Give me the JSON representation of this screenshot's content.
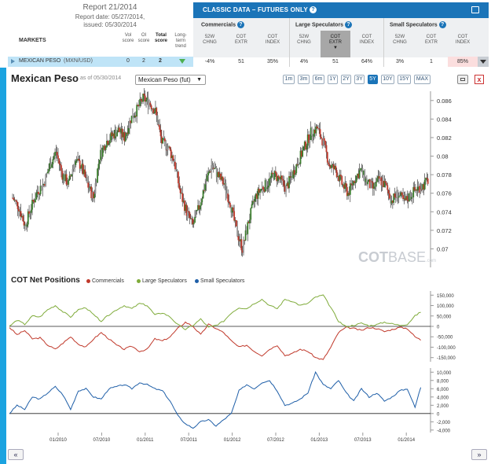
{
  "report": {
    "title": "Report 21/2014",
    "date": "Report date: 05/27/2014,",
    "issued": "issued: 05/30/2014"
  },
  "markets_label": "MARKETS",
  "score_headers": {
    "vol": [
      "Vol",
      "score"
    ],
    "oi": [
      "OI",
      "score"
    ],
    "total": [
      "Total",
      "score"
    ],
    "trend": [
      "Long-",
      "term",
      "trend"
    ]
  },
  "classic": {
    "title": "CLASSIC DATA – FUTURES ONLY",
    "help": "?"
  },
  "groups": [
    {
      "title": "Commercials",
      "cols": [
        [
          "52W",
          "CHNG"
        ],
        [
          "COT",
          "EXTR"
        ],
        [
          "COT",
          "INDEX"
        ]
      ],
      "values": [
        "-4%",
        "51",
        "35%"
      ]
    },
    {
      "title": "Large Speculators",
      "cols": [
        [
          "52W",
          "CHNG"
        ],
        [
          "COT",
          "EXTR"
        ],
        [
          "COT",
          "INDEX"
        ]
      ],
      "values": [
        "4%",
        "51",
        "64%"
      ]
    },
    {
      "title": "Small Speculators",
      "cols": [
        [
          "52W",
          "CHNG"
        ],
        [
          "COT",
          "EXTR"
        ],
        [
          "COT",
          "INDEX"
        ]
      ],
      "values": [
        "3%",
        "1",
        "85%"
      ]
    }
  ],
  "market_row": {
    "name": "MEXICAN PESO",
    "pair": "(MXN/USD)",
    "vol": "0",
    "oi": "2",
    "total": "2"
  },
  "chart_header": {
    "title": "Mexican Peso",
    "asof": "as of 05/30/2014",
    "select": "Mexican Peso (fut)"
  },
  "periods": [
    "1m",
    "3m",
    "6m",
    "1Y",
    "2Y",
    "3Y",
    "5Y",
    "10Y",
    "15Y",
    "MAX"
  ],
  "active_period": "5Y",
  "close": "x",
  "watermark": {
    "bold": "COT",
    "light": "BASE",
    "suffix": ".com"
  },
  "cot_title": "COT Net Positions",
  "legend": [
    {
      "label": "Commercials",
      "color": "#c0392b"
    },
    {
      "label": "Large Speculators",
      "color": "#7fab3a"
    },
    {
      "label": "Small Speculators",
      "color": "#1f5fa8"
    }
  ],
  "nav": {
    "prev": "«",
    "next": "»"
  },
  "chart_data": [
    {
      "type": "candlestick",
      "yticks": [
        "0.086",
        "0.084",
        "0.082",
        "0.08",
        "0.078",
        "0.076",
        "0.074",
        "0.072",
        "0.07"
      ],
      "ylim": [
        0.068,
        0.087
      ],
      "series": [
        {
          "values": [
            0.0755,
            0.0745,
            0.0725,
            0.0745,
            0.0762,
            0.077,
            0.079,
            0.0805,
            0.078,
            0.077,
            0.0795,
            0.079,
            0.077,
            0.0755,
            0.08,
            0.0815,
            0.0822,
            0.0828,
            0.082,
            0.084,
            0.085,
            0.0862,
            0.0858,
            0.0848,
            0.0815,
            0.081,
            0.0795,
            0.076,
            0.074,
            0.0725,
            0.0745,
            0.077,
            0.079,
            0.078,
            0.077,
            0.075,
            0.072,
            0.07,
            0.073,
            0.0755,
            0.0765,
            0.077,
            0.078,
            0.0775,
            0.0765,
            0.078,
            0.0795,
            0.081,
            0.0825,
            0.083,
            0.0815,
            0.079,
            0.0785,
            0.077,
            0.076,
            0.0775,
            0.0785,
            0.0772,
            0.0765,
            0.0775,
            0.0768,
            0.0752,
            0.076,
            0.075,
            0.0758,
            0.0765,
            0.0768,
            0.0775
          ]
        }
      ]
    },
    {
      "type": "line",
      "yticks": [
        "150,000",
        "100,000",
        "50,000",
        "0",
        "-50,000",
        "-100,000",
        "-150,000"
      ],
      "ylim": [
        -170000,
        170000
      ],
      "series": [
        {
          "name": "Commercials",
          "values": [
            -5000,
            -40000,
            -20000,
            -60000,
            -55000,
            -90000,
            -110000,
            -80000,
            -50000,
            -85000,
            -100000,
            -60000,
            -30000,
            -60000,
            -90000,
            -110000,
            -95000,
            -120000,
            -110000,
            -60000,
            -70000,
            -50000,
            -10000,
            20000,
            0,
            -40000,
            10000,
            -10000,
            -30000,
            -70000,
            -100000,
            -90000,
            -120000,
            -140000,
            -110000,
            -90000,
            -140000,
            -130000,
            -110000,
            -120000,
            -150000,
            -160000,
            -100000,
            -30000,
            -5000,
            -10000,
            -20000,
            -5000,
            -10000,
            -25000,
            -15000,
            -5000,
            -10000,
            -50000,
            -70000
          ]
        },
        {
          "name": "Large Speculators",
          "values": [
            0,
            30000,
            10000,
            50000,
            45000,
            80000,
            100000,
            70000,
            45000,
            80000,
            90000,
            55000,
            25000,
            55000,
            80000,
            100000,
            85000,
            110000,
            100000,
            55000,
            65000,
            45000,
            8000,
            -15000,
            5000,
            35000,
            -5000,
            5000,
            25000,
            65000,
            90000,
            85000,
            110000,
            130000,
            100000,
            85000,
            130000,
            120000,
            100000,
            110000,
            140000,
            150000,
            90000,
            25000,
            -2000,
            5000,
            15000,
            3000,
            8000,
            20000,
            12000,
            5000,
            10000,
            50000,
            75000
          ]
        }
      ]
    },
    {
      "type": "line",
      "yticks": [
        "10,000",
        "8,000",
        "6,000",
        "4,000",
        "2,000",
        "0",
        "-2,000",
        "-4,000"
      ],
      "ylim": [
        -4600,
        11000
      ],
      "series": [
        {
          "name": "Small Speculators",
          "values": [
            0,
            2000,
            1000,
            4000,
            3500,
            5000,
            6500,
            4500,
            1000,
            5500,
            6000,
            4000,
            3500,
            6000,
            6500,
            7000,
            6000,
            7500,
            7000,
            6000,
            5500,
            3000,
            -500,
            -2500,
            -3500,
            -2000,
            -1500,
            -3000,
            -1500,
            0,
            5500,
            7000,
            6000,
            7500,
            8000,
            5500,
            2000,
            2500,
            3500,
            5000,
            10000,
            7000,
            6000,
            8000,
            5000,
            3000,
            6000,
            4000,
            5000,
            3000,
            4000,
            5500,
            6000,
            1500,
            8000
          ]
        }
      ]
    }
  ],
  "xticks": [
    "01/2010",
    "07/2010",
    "01/2011",
    "07/2011",
    "01/2012",
    "07/2012",
    "01/2013",
    "07/2013",
    "01/2014"
  ]
}
